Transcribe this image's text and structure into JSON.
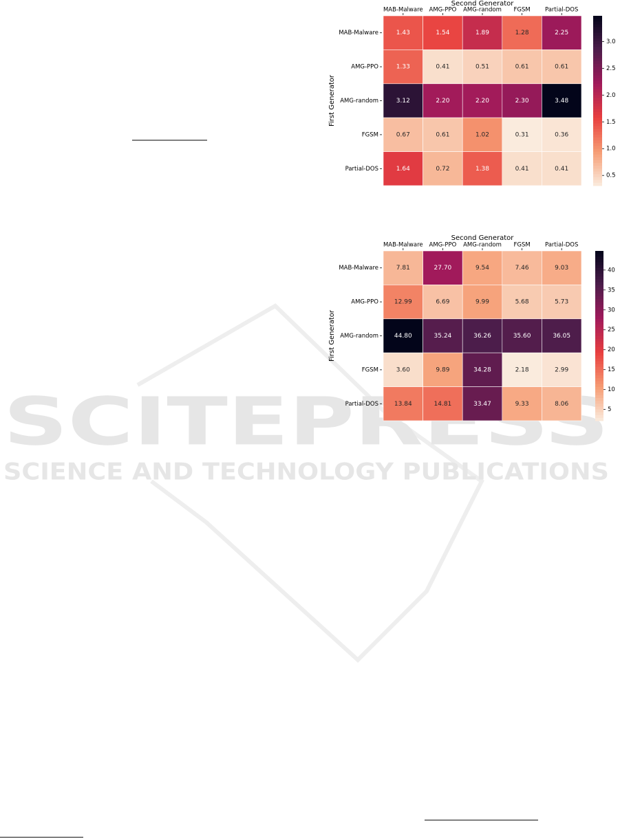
{
  "watermark": {
    "title": "SCITEPRESS",
    "subtitle": "SCIENCE AND TECHNOLOGY PUBLICATIONS"
  },
  "chart_data": [
    {
      "type": "heatmap",
      "x_label": "Second Generator",
      "y_label": "First Generator",
      "x_categories": [
        "MAB-Malware",
        "AMG-PPO",
        "AMG-random",
        "FGSM",
        "Partial-DOS"
      ],
      "y_categories": [
        "MAB-Malware",
        "AMG-PPO",
        "AMG-random",
        "FGSM",
        "Partial-DOS"
      ],
      "values": [
        [
          1.43,
          1.54,
          1.89,
          1.28,
          2.25
        ],
        [
          1.33,
          0.41,
          0.51,
          0.61,
          0.61
        ],
        [
          3.12,
          2.2,
          2.2,
          2.3,
          3.48
        ],
        [
          0.67,
          0.61,
          1.02,
          0.31,
          0.36
        ],
        [
          1.64,
          0.72,
          1.38,
          0.41,
          0.41
        ]
      ],
      "value_labels": [
        [
          "1.43",
          "1.54",
          "1.89",
          "1.28",
          "2.25"
        ],
        [
          "1.33",
          "0.41",
          "0.51",
          "0.61",
          "0.61"
        ],
        [
          "3.12",
          "2.20",
          "2.20",
          "2.30",
          "3.48"
        ],
        [
          "0.67",
          "0.61",
          "1.02",
          "0.31",
          "0.36"
        ],
        [
          "1.64",
          "0.72",
          "1.38",
          "0.41",
          "0.41"
        ]
      ],
      "colormap": "rocket_r",
      "zlim": [
        0.31,
        3.48
      ],
      "zticks": [
        0.5,
        {
          "value": 1,
          "label": "1.0"
        },
        1.5,
        {
          "value": 2,
          "label": "2.0"
        },
        2.5,
        {
          "value": 3,
          "label": "3.0"
        }
      ]
    },
    {
      "type": "heatmap",
      "x_label": "Second Generator",
      "y_label": "First Generator",
      "x_categories": [
        "MAB-Malware",
        "AMG-PPO",
        "AMG-random",
        "FGSM",
        "Partial-DOS"
      ],
      "y_categories": [
        "MAB-Malware",
        "AMG-PPO",
        "AMG-random",
        "FGSM",
        "Partial-DOS"
      ],
      "values": [
        [
          7.81,
          27.7,
          9.54,
          7.46,
          9.03
        ],
        [
          12.99,
          6.69,
          9.99,
          5.68,
          5.73
        ],
        [
          44.8,
          35.24,
          36.26,
          35.6,
          36.05
        ],
        [
          3.6,
          9.89,
          34.28,
          2.18,
          2.99
        ],
        [
          13.84,
          14.81,
          33.47,
          9.33,
          8.06
        ]
      ],
      "value_labels": [
        [
          "7.81",
          "27.70",
          "9.54",
          "7.46",
          "9.03"
        ],
        [
          "12.99",
          "6.69",
          "9.99",
          "5.68",
          "5.73"
        ],
        [
          "44.80",
          "35.24",
          "36.26",
          "35.60",
          "36.05"
        ],
        [
          "3.60",
          "9.89",
          "34.28",
          "2.18",
          "2.99"
        ],
        [
          "13.84",
          "14.81",
          "33.47",
          "9.33",
          "8.06"
        ]
      ],
      "colormap": "rocket_r",
      "zlim": [
        2.18,
        44.8
      ],
      "zticks": [
        5,
        10,
        15,
        20,
        25,
        30,
        35,
        40
      ]
    }
  ]
}
